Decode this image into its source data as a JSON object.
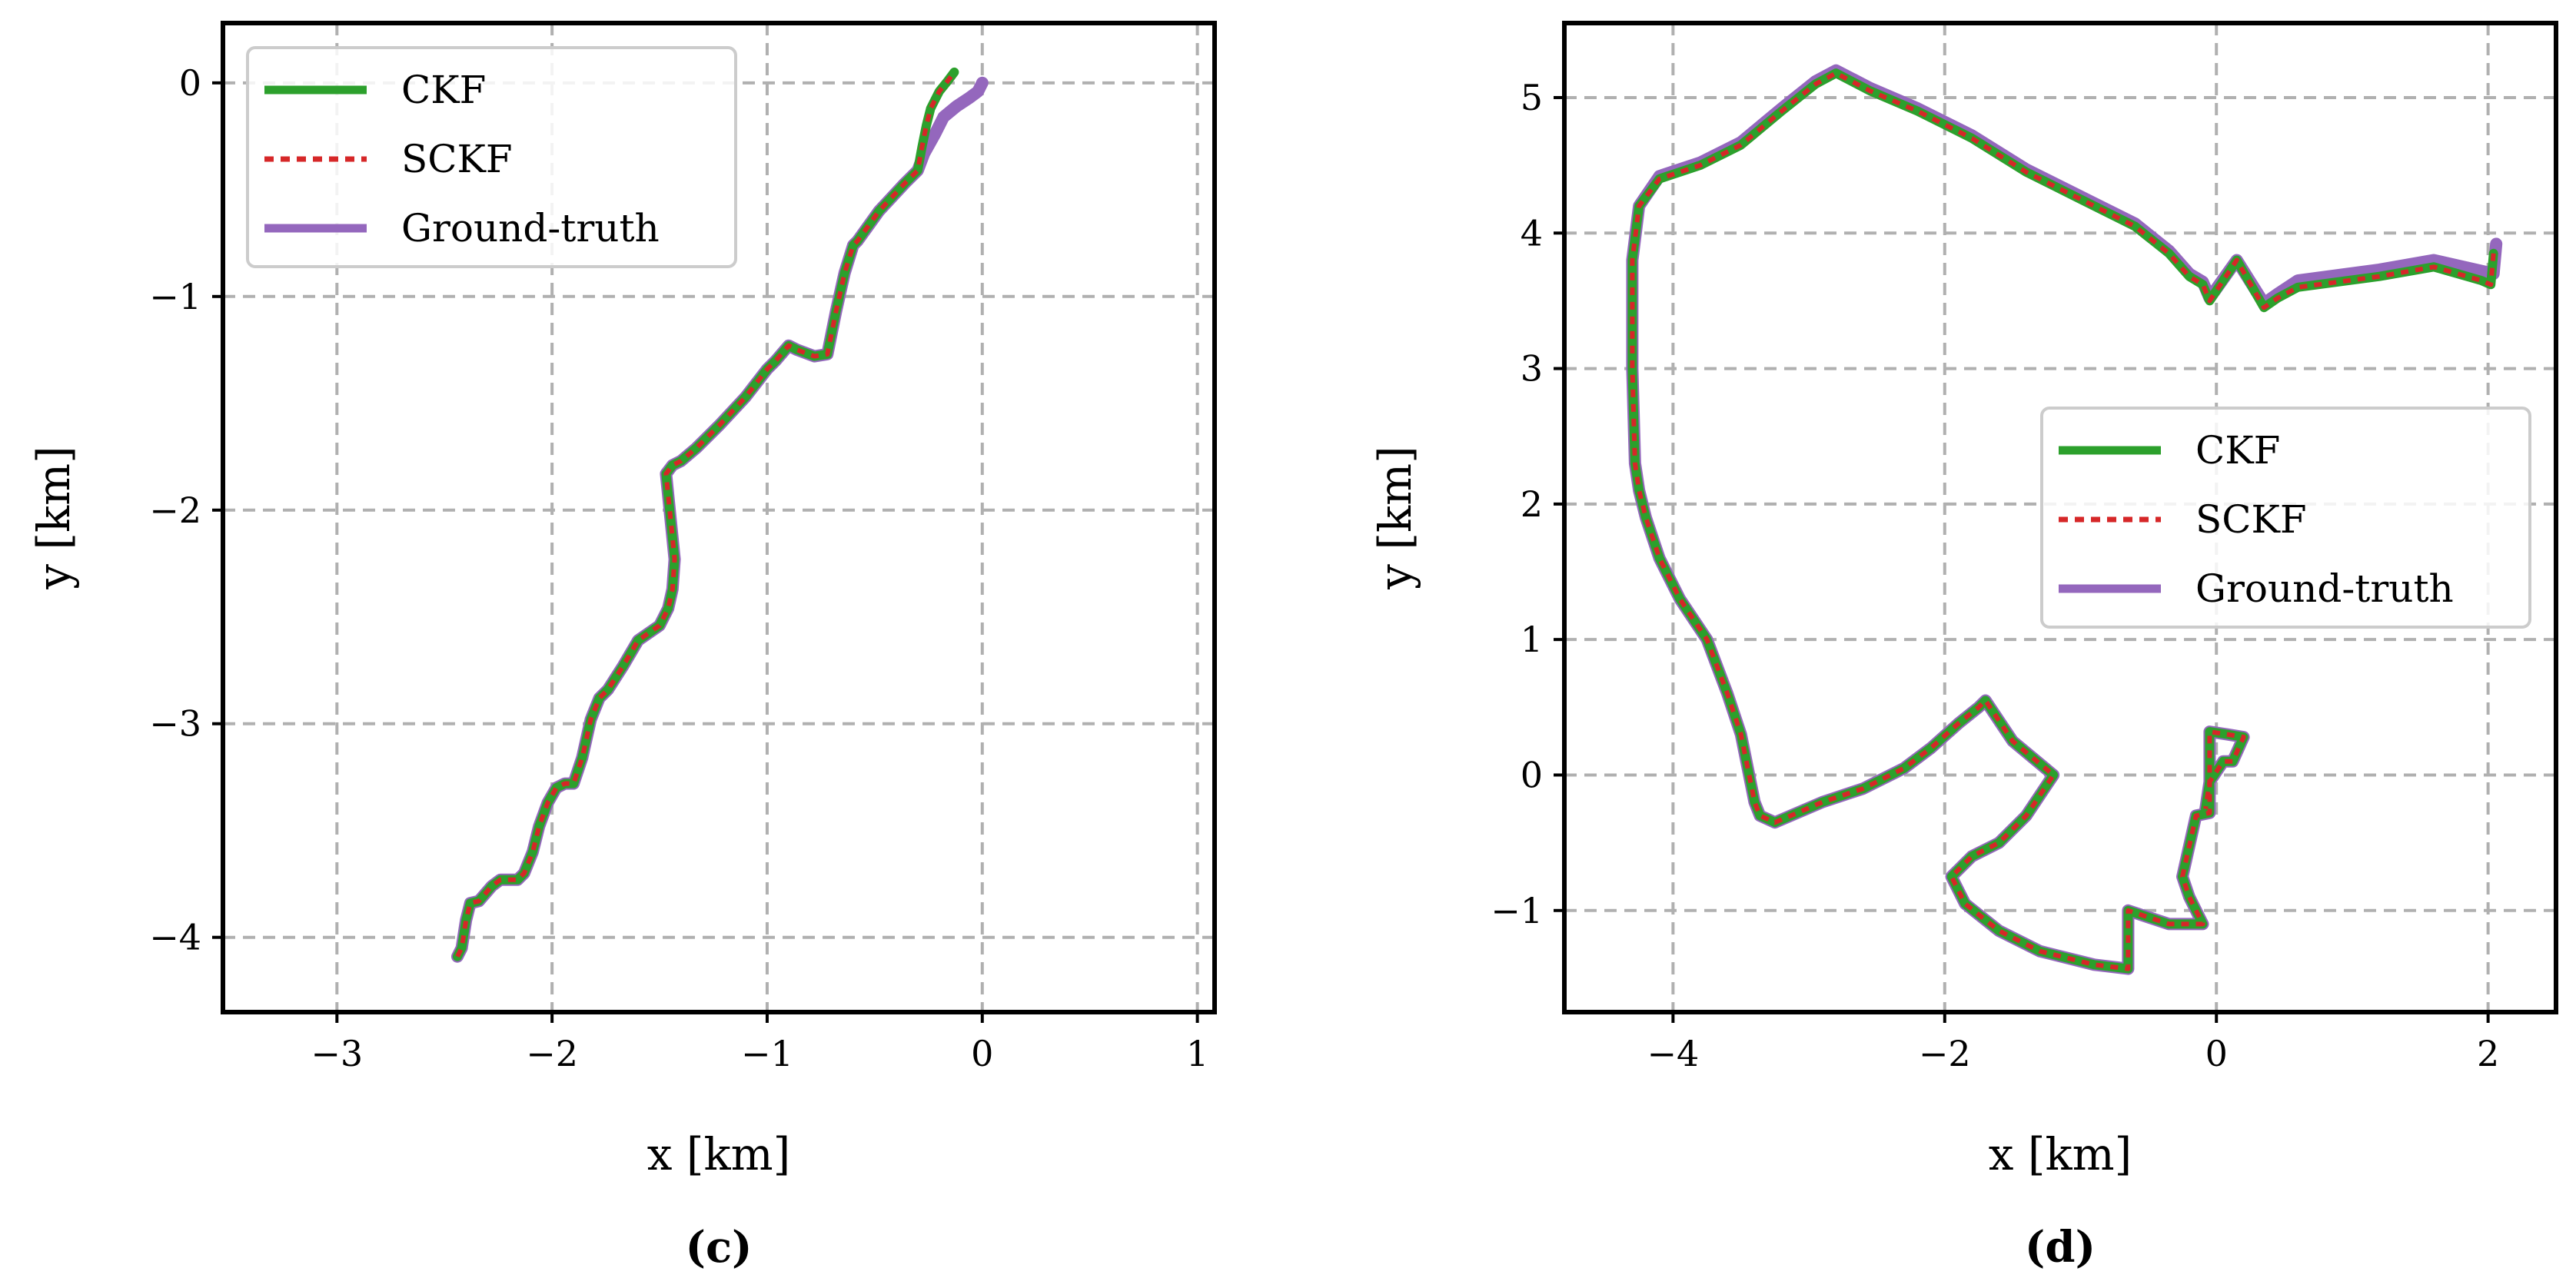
{
  "colors": {
    "CKF": "#2ca02c",
    "SCKF": "#d62728",
    "Ground-truth": "#9467bd"
  },
  "chart_data": [
    {
      "type": "line",
      "panel_label": "(c)",
      "xlabel": "x [km]",
      "ylabel": "y [km]",
      "xlim": [
        -3.53,
        1.08
      ],
      "ylim": [
        -4.35,
        0.28
      ],
      "xticks": [
        -3,
        -2,
        -1,
        0,
        1
      ],
      "yticks": [
        0,
        -1,
        -2,
        -3,
        -4
      ],
      "xtick_labels": [
        "−3",
        "−2",
        "−1",
        "0",
        "1"
      ],
      "ytick_labels": [
        "0",
        "−1",
        "−2",
        "−3",
        "−4"
      ],
      "grid": true,
      "legend_position": "top-left",
      "series": [
        {
          "name": "CKF",
          "style": "solid",
          "x": [
            -2.44,
            -2.42,
            -2.4,
            -2.38,
            -2.34,
            -2.28,
            -2.24,
            -2.16,
            -2.13,
            -2.09,
            -2.06,
            -2.02,
            -1.98,
            -1.94,
            -1.9,
            -1.86,
            -1.84,
            -1.82,
            -1.78,
            -1.74,
            -1.67,
            -1.6,
            -1.5,
            -1.46,
            -1.44,
            -1.43,
            -1.45,
            -1.47,
            -1.44,
            -1.4,
            -1.33,
            -1.22,
            -1.1,
            -1.0,
            -0.96,
            -0.9,
            -0.86,
            -0.78,
            -0.72,
            -0.68,
            -0.64,
            -0.6,
            -0.58,
            -0.48,
            -0.36,
            -0.3,
            -0.28,
            -0.26,
            -0.24,
            -0.22,
            -0.2,
            -0.16,
            -0.13
          ],
          "y": [
            -4.09,
            -4.05,
            -3.92,
            -3.84,
            -3.83,
            -3.76,
            -3.73,
            -3.73,
            -3.7,
            -3.6,
            -3.48,
            -3.37,
            -3.3,
            -3.28,
            -3.28,
            -3.16,
            -3.07,
            -2.98,
            -2.88,
            -2.84,
            -2.73,
            -2.61,
            -2.54,
            -2.46,
            -2.37,
            -2.23,
            -2.03,
            -1.83,
            -1.79,
            -1.77,
            -1.71,
            -1.6,
            -1.47,
            -1.34,
            -1.3,
            -1.23,
            -1.25,
            -1.28,
            -1.27,
            -1.07,
            -0.89,
            -0.76,
            -0.74,
            -0.6,
            -0.47,
            -0.41,
            -0.3,
            -0.2,
            -0.12,
            -0.08,
            -0.04,
            0.01,
            0.05
          ]
        },
        {
          "name": "SCKF",
          "style": "dashed",
          "x": [
            -2.44,
            -2.42,
            -2.4,
            -2.38,
            -2.34,
            -2.28,
            -2.24,
            -2.16,
            -2.13,
            -2.09,
            -2.06,
            -2.02,
            -1.98,
            -1.94,
            -1.9,
            -1.86,
            -1.84,
            -1.82,
            -1.78,
            -1.74,
            -1.67,
            -1.6,
            -1.5,
            -1.46,
            -1.44,
            -1.43,
            -1.45,
            -1.47,
            -1.44,
            -1.4,
            -1.33,
            -1.22,
            -1.1,
            -1.0,
            -0.96,
            -0.9,
            -0.86,
            -0.78,
            -0.72,
            -0.68,
            -0.64,
            -0.6,
            -0.58,
            -0.48,
            -0.36,
            -0.3,
            -0.28,
            -0.26,
            -0.24,
            -0.22,
            -0.2,
            -0.16,
            -0.13
          ],
          "y": [
            -4.09,
            -4.05,
            -3.92,
            -3.84,
            -3.83,
            -3.76,
            -3.73,
            -3.73,
            -3.7,
            -3.6,
            -3.48,
            -3.37,
            -3.3,
            -3.28,
            -3.28,
            -3.16,
            -3.07,
            -2.98,
            -2.88,
            -2.84,
            -2.73,
            -2.61,
            -2.54,
            -2.46,
            -2.37,
            -2.23,
            -2.03,
            -1.83,
            -1.79,
            -1.77,
            -1.71,
            -1.6,
            -1.47,
            -1.34,
            -1.3,
            -1.23,
            -1.25,
            -1.28,
            -1.27,
            -1.07,
            -0.89,
            -0.76,
            -0.74,
            -0.6,
            -0.47,
            -0.41,
            -0.3,
            -0.2,
            -0.12,
            -0.08,
            -0.04,
            0.01,
            0.05
          ]
        },
        {
          "name": "Ground-truth",
          "style": "solid",
          "x": [
            -2.44,
            -2.42,
            -2.4,
            -2.38,
            -2.34,
            -2.28,
            -2.24,
            -2.16,
            -2.13,
            -2.09,
            -2.06,
            -2.02,
            -1.98,
            -1.94,
            -1.9,
            -1.86,
            -1.84,
            -1.82,
            -1.78,
            -1.74,
            -1.67,
            -1.6,
            -1.5,
            -1.46,
            -1.44,
            -1.43,
            -1.45,
            -1.47,
            -1.44,
            -1.4,
            -1.33,
            -1.22,
            -1.1,
            -1.0,
            -0.96,
            -0.9,
            -0.86,
            -0.78,
            -0.72,
            -0.68,
            -0.64,
            -0.6,
            -0.58,
            -0.48,
            -0.36,
            -0.3,
            -0.27,
            -0.22,
            -0.18,
            -0.12,
            -0.06,
            -0.02,
            0.0
          ],
          "y": [
            -4.09,
            -4.05,
            -3.92,
            -3.84,
            -3.83,
            -3.76,
            -3.73,
            -3.73,
            -3.7,
            -3.6,
            -3.48,
            -3.37,
            -3.3,
            -3.28,
            -3.28,
            -3.16,
            -3.07,
            -2.98,
            -2.88,
            -2.84,
            -2.73,
            -2.61,
            -2.54,
            -2.46,
            -2.37,
            -2.23,
            -2.03,
            -1.83,
            -1.79,
            -1.77,
            -1.71,
            -1.6,
            -1.47,
            -1.34,
            -1.3,
            -1.23,
            -1.25,
            -1.28,
            -1.27,
            -1.07,
            -0.89,
            -0.76,
            -0.74,
            -0.6,
            -0.47,
            -0.41,
            -0.33,
            -0.24,
            -0.16,
            -0.11,
            -0.07,
            -0.04,
            0.0
          ]
        }
      ]
    },
    {
      "type": "line",
      "panel_label": "(d)",
      "xlabel": "x [km]",
      "ylabel": "y [km]",
      "xlim": [
        -4.8,
        2.5
      ],
      "ylim": [
        -1.75,
        5.55
      ],
      "xticks": [
        -4,
        -2,
        0,
        2
      ],
      "yticks": [
        5,
        4,
        3,
        2,
        1,
        0,
        -1
      ],
      "xtick_labels": [
        "−4",
        "−2",
        "0",
        "2"
      ],
      "ytick_labels": [
        "5",
        "4",
        "3",
        "2",
        "1",
        "0",
        "−1"
      ],
      "grid": true,
      "legend_position": "center-right",
      "series": [
        {
          "name": "CKF",
          "style": "solid",
          "x": [
            2.04,
            2.02,
            1.95,
            1.6,
            1.2,
            0.6,
            0.45,
            0.35,
            0.15,
            -0.05,
            -0.1,
            -0.2,
            -0.35,
            -0.6,
            -1.0,
            -1.4,
            -1.8,
            -2.2,
            -2.55,
            -2.8,
            -2.95,
            -3.2,
            -3.5,
            -3.8,
            -4.1,
            -4.25,
            -4.3,
            -4.3,
            -4.28,
            -4.25,
            -4.2,
            -4.1,
            -3.95,
            -3.75,
            -3.6,
            -3.5,
            -3.42,
            -3.4,
            -3.36,
            -3.25,
            -2.9,
            -2.6,
            -2.3,
            -2.1,
            -1.9,
            -1.75,
            -1.7,
            -1.5,
            -1.2,
            -1.4,
            -1.6,
            -1.8,
            -1.95,
            -1.85,
            -1.6,
            -1.3,
            -0.9,
            -0.65,
            -0.65,
            -0.35,
            -0.1,
            -0.2,
            -0.25,
            -0.15,
            -0.05,
            -0.05,
            0.08,
            0.2,
            0.12,
            0.05,
            -0.05,
            -0.08
          ],
          "y": [
            3.85,
            3.62,
            3.65,
            3.75,
            3.68,
            3.6,
            3.52,
            3.45,
            3.8,
            3.5,
            3.62,
            3.68,
            3.85,
            4.05,
            4.25,
            4.45,
            4.7,
            4.9,
            5.05,
            5.18,
            5.1,
            4.9,
            4.65,
            4.5,
            4.4,
            4.2,
            3.8,
            3.0,
            2.3,
            2.1,
            1.9,
            1.6,
            1.3,
            1.0,
            0.6,
            0.3,
            -0.1,
            -0.2,
            -0.3,
            -0.35,
            -0.2,
            -0.1,
            0.05,
            0.2,
            0.38,
            0.5,
            0.55,
            0.25,
            0.0,
            -0.3,
            -0.5,
            -0.6,
            -0.75,
            -0.95,
            -1.15,
            -1.3,
            -1.4,
            -1.43,
            -1.0,
            -1.1,
            -1.1,
            -0.9,
            -0.75,
            -0.3,
            -0.28,
            0.32,
            0.3,
            0.28,
            0.1,
            0.1,
            -0.05,
            -0.25
          ]
        },
        {
          "name": "SCKF",
          "style": "dashed",
          "x": [
            2.04,
            2.02,
            1.95,
            1.6,
            1.2,
            0.6,
            0.45,
            0.35,
            0.15,
            -0.05,
            -0.1,
            -0.2,
            -0.35,
            -0.6,
            -1.0,
            -1.4,
            -1.8,
            -2.2,
            -2.55,
            -2.8,
            -2.95,
            -3.2,
            -3.5,
            -3.8,
            -4.1,
            -4.25,
            -4.3,
            -4.3,
            -4.28,
            -4.25,
            -4.2,
            -4.1,
            -3.95,
            -3.75,
            -3.6,
            -3.5,
            -3.42,
            -3.4,
            -3.36,
            -3.25,
            -2.9,
            -2.6,
            -2.3,
            -2.1,
            -1.9,
            -1.75,
            -1.7,
            -1.5,
            -1.2,
            -1.4,
            -1.6,
            -1.8,
            -1.95,
            -1.85,
            -1.6,
            -1.3,
            -0.9,
            -0.65,
            -0.65,
            -0.35,
            -0.1,
            -0.2,
            -0.25,
            -0.15,
            -0.05,
            -0.05,
            0.08,
            0.2,
            0.12,
            0.05,
            -0.05,
            -0.08
          ],
          "y": [
            3.85,
            3.62,
            3.65,
            3.75,
            3.68,
            3.6,
            3.52,
            3.45,
            3.8,
            3.5,
            3.62,
            3.68,
            3.85,
            4.05,
            4.25,
            4.45,
            4.7,
            4.9,
            5.05,
            5.18,
            5.1,
            4.9,
            4.65,
            4.5,
            4.4,
            4.2,
            3.8,
            3.0,
            2.3,
            2.1,
            1.9,
            1.6,
            1.3,
            1.0,
            0.6,
            0.3,
            -0.1,
            -0.2,
            -0.3,
            -0.35,
            -0.2,
            -0.1,
            0.05,
            0.2,
            0.38,
            0.5,
            0.55,
            0.25,
            0.0,
            -0.3,
            -0.5,
            -0.6,
            -0.75,
            -0.95,
            -1.15,
            -1.3,
            -1.4,
            -1.43,
            -1.0,
            -1.1,
            -1.1,
            -0.9,
            -0.75,
            -0.3,
            -0.28,
            0.32,
            0.3,
            0.28,
            0.1,
            0.1,
            -0.05,
            -0.25
          ]
        },
        {
          "name": "Ground-truth",
          "style": "solid",
          "x": [
            2.06,
            2.04,
            1.95,
            1.6,
            1.2,
            0.6,
            0.45,
            0.35,
            0.15,
            -0.05,
            -0.1,
            -0.2,
            -0.35,
            -0.6,
            -1.0,
            -1.4,
            -1.8,
            -2.2,
            -2.55,
            -2.8,
            -2.95,
            -3.2,
            -3.5,
            -3.8,
            -4.1,
            -4.25,
            -4.3,
            -4.3,
            -4.28,
            -4.25,
            -4.2,
            -4.1,
            -3.95,
            -3.75,
            -3.6,
            -3.5,
            -3.42,
            -3.4,
            -3.36,
            -3.25,
            -2.9,
            -2.6,
            -2.3,
            -2.1,
            -1.9,
            -1.75,
            -1.7,
            -1.5,
            -1.2,
            -1.4,
            -1.6,
            -1.8,
            -1.95,
            -1.85,
            -1.6,
            -1.3,
            -0.9,
            -0.65,
            -0.65,
            -0.35,
            -0.1,
            -0.2,
            -0.25,
            -0.15,
            -0.05,
            -0.05,
            0.08,
            0.2,
            0.12,
            0.05,
            -0.05,
            -0.08
          ],
          "y": [
            3.92,
            3.7,
            3.72,
            3.8,
            3.73,
            3.65,
            3.55,
            3.48,
            3.8,
            3.52,
            3.64,
            3.7,
            3.87,
            4.07,
            4.27,
            4.47,
            4.72,
            4.92,
            5.07,
            5.2,
            5.12,
            4.92,
            4.67,
            4.52,
            4.42,
            4.2,
            3.8,
            3.0,
            2.3,
            2.1,
            1.9,
            1.6,
            1.3,
            1.0,
            0.6,
            0.3,
            -0.1,
            -0.2,
            -0.3,
            -0.35,
            -0.2,
            -0.1,
            0.05,
            0.2,
            0.38,
            0.5,
            0.55,
            0.25,
            0.0,
            -0.3,
            -0.5,
            -0.6,
            -0.75,
            -0.95,
            -1.15,
            -1.3,
            -1.4,
            -1.43,
            -1.0,
            -1.1,
            -1.1,
            -0.9,
            -0.75,
            -0.3,
            -0.28,
            0.32,
            0.3,
            0.28,
            0.1,
            0.1,
            -0.05,
            -0.25
          ]
        }
      ]
    }
  ]
}
